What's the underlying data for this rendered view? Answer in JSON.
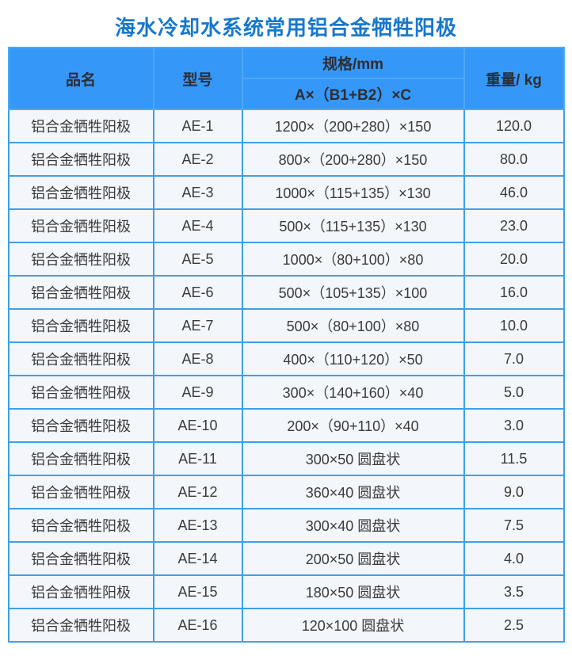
{
  "page_title": "海水冷却水系统常用铝合金牺牲阳极",
  "colors": {
    "page_bg": "#ffffff",
    "title_text": "#1778cd",
    "header_bg": "#3598f8",
    "header_border": "#4ea8f2",
    "header_text": "#2d2d33",
    "row_bg": "#f3f7fc",
    "grid_border": "#3e9fe9",
    "cell_text": "#3a3a3a"
  },
  "table": {
    "header": {
      "product": "品名",
      "model": "型号",
      "spec_group": "规格/mm",
      "spec_formula": "A×（B1+B2）×C",
      "weight": "重量/ kg"
    },
    "rows": [
      {
        "product": "铝合金牺牲阳极",
        "model": "AE-1",
        "spec": "1200×（200+280）×150",
        "weight": "120.0"
      },
      {
        "product": "铝合金牺牲阳极",
        "model": "AE-2",
        "spec": "800×（200+280）×150",
        "weight": "80.0"
      },
      {
        "product": "铝合金牺牲阳极",
        "model": "AE-3",
        "spec": "1000×（115+135）×130",
        "weight": "46.0"
      },
      {
        "product": "铝合金牺牲阳极",
        "model": "AE-4",
        "spec": "500×（115+135）×130",
        "weight": "23.0"
      },
      {
        "product": "铝合金牺牲阳极",
        "model": "AE-5",
        "spec": "1000×（80+100）×80",
        "weight": "20.0"
      },
      {
        "product": "铝合金牺牲阳极",
        "model": "AE-6",
        "spec": "500×（105+135）×100",
        "weight": "16.0"
      },
      {
        "product": "铝合金牺牲阳极",
        "model": "AE-7",
        "spec": "500×（80+100）×80",
        "weight": "10.0"
      },
      {
        "product": "铝合金牺牲阳极",
        "model": "AE-8",
        "spec": "400×（110+120）×50",
        "weight": "7.0"
      },
      {
        "product": "铝合金牺牲阳极",
        "model": "AE-9",
        "spec": "300×（140+160）×40",
        "weight": "5.0"
      },
      {
        "product": "铝合金牺牲阳极",
        "model": "AE-10",
        "spec": "200×（90+110）×40",
        "weight": "3.0"
      },
      {
        "product": "铝合金牺牲阳极",
        "model": "AE-11",
        "spec": "300×50 圆盘状",
        "weight": "11.5"
      },
      {
        "product": "铝合金牺牲阳极",
        "model": "AE-12",
        "spec": "360×40 圆盘状",
        "weight": "9.0"
      },
      {
        "product": "铝合金牺牲阳极",
        "model": "AE-13",
        "spec": "300×40 圆盘状",
        "weight": "7.5"
      },
      {
        "product": "铝合金牺牲阳极",
        "model": "AE-14",
        "spec": "200×50 圆盘状",
        "weight": "4.0"
      },
      {
        "product": "铝合金牺牲阳极",
        "model": "AE-15",
        "spec": "180×50 圆盘状",
        "weight": "3.5"
      },
      {
        "product": "铝合金牺牲阳极",
        "model": "AE-16",
        "spec": "120×100 圆盘状",
        "weight": "2.5"
      }
    ]
  }
}
